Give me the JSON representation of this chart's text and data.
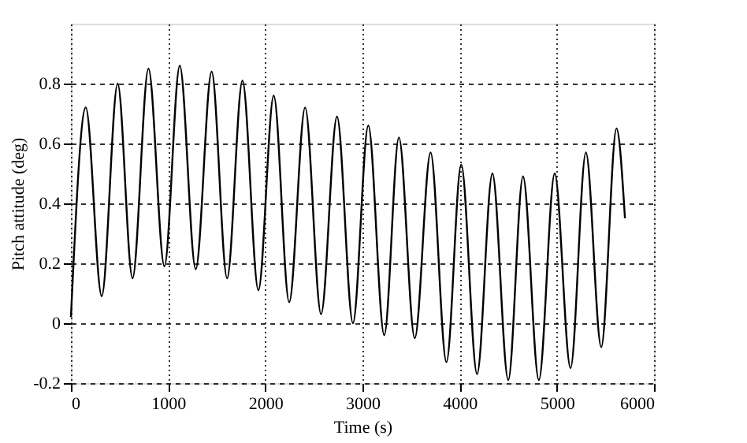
{
  "chart_data": {
    "type": "line",
    "xlabel": "Time (s)",
    "ylabel": "Pitch attitude (deg)",
    "xlim": [
      0,
      6000
    ],
    "ylim": [
      -0.2,
      1
    ],
    "xticks": [
      0,
      1000,
      2000,
      3000,
      4000,
      5000,
      6000
    ],
    "yticks": [
      -0.2,
      0,
      0.2,
      0.4,
      0.6,
      0.8
    ],
    "grid": true,
    "line_style": "solid",
    "marker": "none",
    "series": [
      {
        "color": "#000000",
        "x": [
          0,
          153,
          317,
          481,
          634,
          798,
          962,
          1120,
          1284,
          1448,
          1607,
          1765,
          1929,
          2087,
          2246,
          2410,
          2574,
          2738,
          2902,
          3060,
          3224,
          3375,
          3538,
          3701,
          3864,
          4016,
          4179,
          4337,
          4500,
          4652,
          4815,
          4978,
          5141,
          5299,
          5457,
          5614,
          5701
        ],
        "values": [
          0.02,
          0.72,
          0.09,
          0.8,
          0.15,
          0.85,
          0.19,
          0.86,
          0.18,
          0.84,
          0.15,
          0.81,
          0.11,
          0.76,
          0.07,
          0.72,
          0.03,
          0.69,
          0.0,
          0.66,
          -0.04,
          0.62,
          -0.05,
          0.57,
          -0.13,
          0.53,
          -0.17,
          0.5,
          -0.19,
          0.49,
          -0.19,
          0.5,
          -0.15,
          0.57,
          -0.08,
          0.65,
          0.35
        ]
      }
    ]
  }
}
